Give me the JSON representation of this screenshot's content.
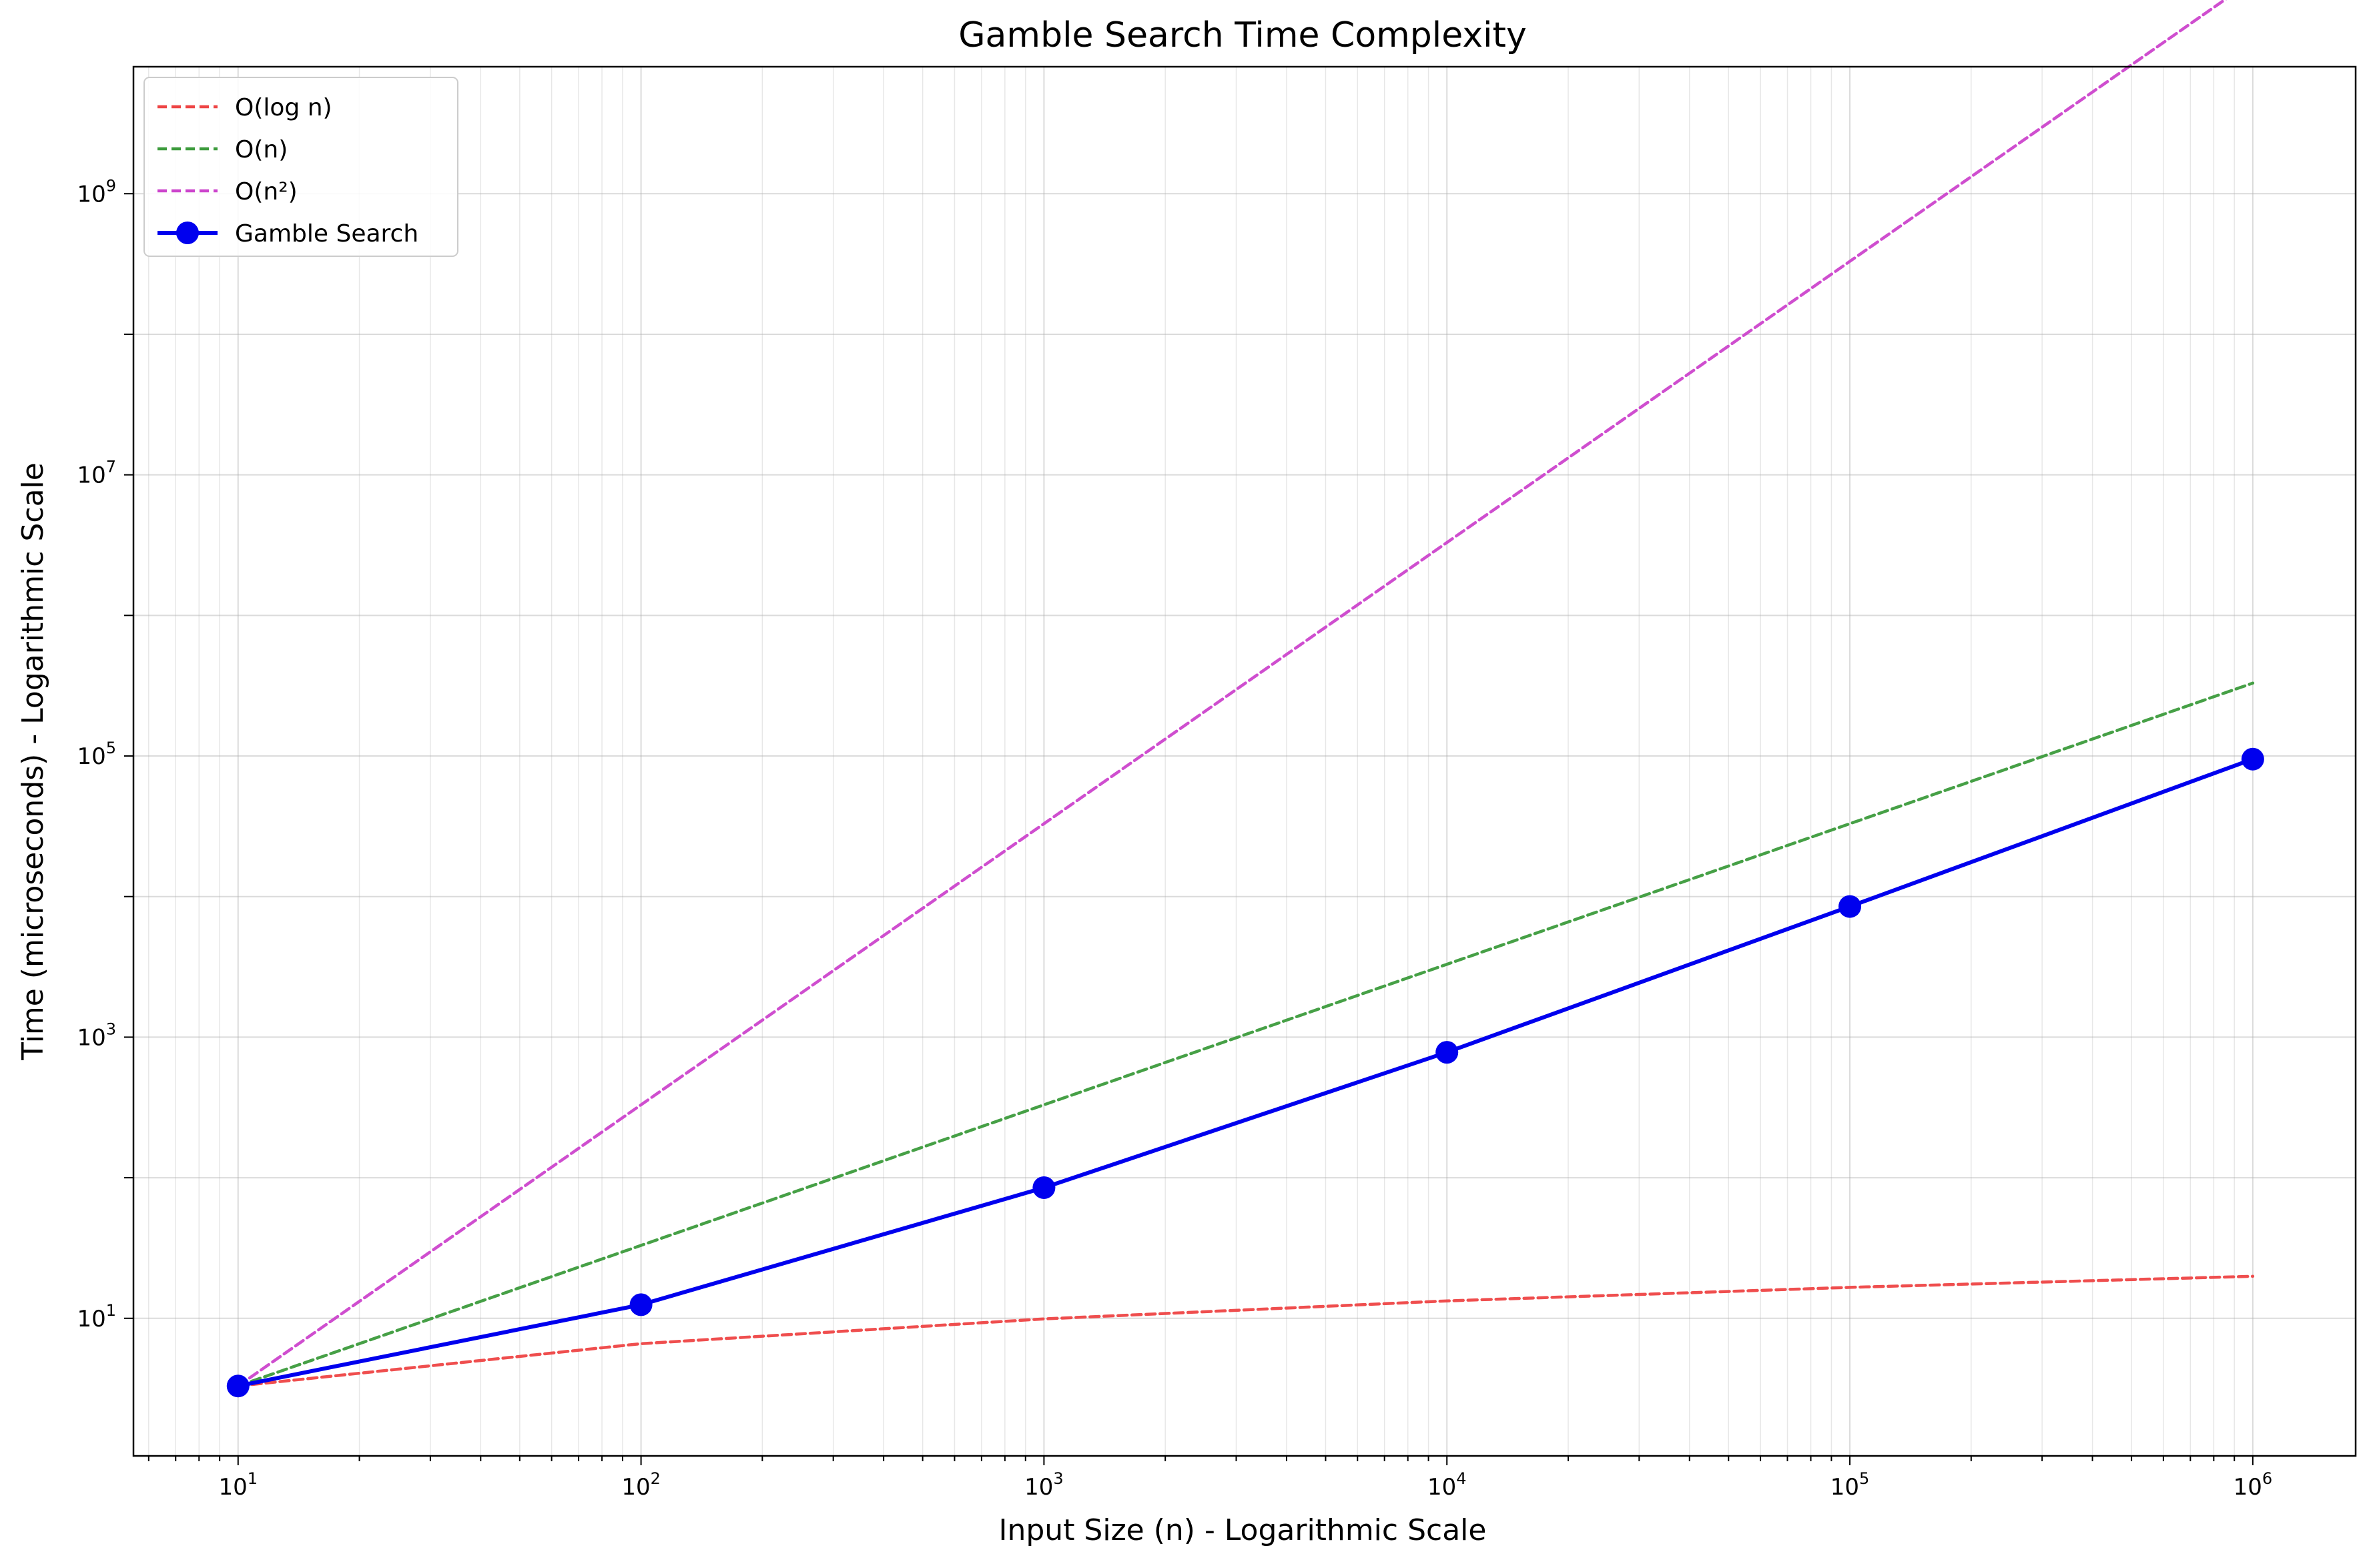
{
  "chart_data": {
    "type": "line",
    "title": "Gamble Search Time Complexity",
    "xlabel": "Input Size (n) - Logarithmic Scale",
    "ylabel": "Time (microseconds) - Logarithmic Scale",
    "x_scale": "log",
    "y_scale": "log",
    "xlim": [
      5.5,
      1800000
    ],
    "ylim": [
      1.05,
      8000000000
    ],
    "grid": "both (major and minor)",
    "legend_position": "top-left",
    "x_ticks": [
      10,
      100,
      1000,
      10000,
      100000,
      1000000
    ],
    "x_tick_labels": [
      {
        "base": "10",
        "exp": "1"
      },
      {
        "base": "10",
        "exp": "2"
      },
      {
        "base": "10",
        "exp": "3"
      },
      {
        "base": "10",
        "exp": "4"
      },
      {
        "base": "10",
        "exp": "5"
      },
      {
        "base": "10",
        "exp": "6"
      }
    ],
    "y_ticks": [
      10,
      1000,
      100000,
      10000000,
      1000000000
    ],
    "y_tick_labels": [
      {
        "base": "10",
        "exp": "1"
      },
      {
        "base": "10",
        "exp": "3"
      },
      {
        "base": "10",
        "exp": "5"
      },
      {
        "base": "10",
        "exp": "7"
      },
      {
        "base": "10",
        "exp": "9"
      }
    ],
    "series": [
      {
        "name": "O(log n)",
        "style": "dashed",
        "color": "#ee4444",
        "x": [
          10,
          100,
          1000,
          10000,
          100000,
          1000000
        ],
        "y": [
          3.3,
          6.6,
          9.9,
          13.3,
          16.6,
          19.9
        ]
      },
      {
        "name": "O(n)",
        "style": "dashed",
        "color": "#3c9b3c",
        "x": [
          10,
          100,
          1000,
          10000,
          100000,
          1000000
        ],
        "y": [
          3.3,
          33,
          330,
          3300,
          33000,
          330000
        ]
      },
      {
        "name": "O(n²)",
        "style": "dashed",
        "color": "#cc44cc",
        "x": [
          10,
          100,
          1000,
          10000,
          100000,
          1000000
        ],
        "y": [
          3.3,
          330,
          33000,
          3300000,
          330000000,
          33000000000
        ]
      },
      {
        "name": "Gamble Search",
        "style": "solid-markers",
        "color": "#0000ee",
        "x": [
          10,
          100,
          1000,
          10000,
          100000,
          1000000
        ],
        "y": [
          3.3,
          12.5,
          85,
          780,
          8500,
          95000
        ]
      }
    ]
  }
}
